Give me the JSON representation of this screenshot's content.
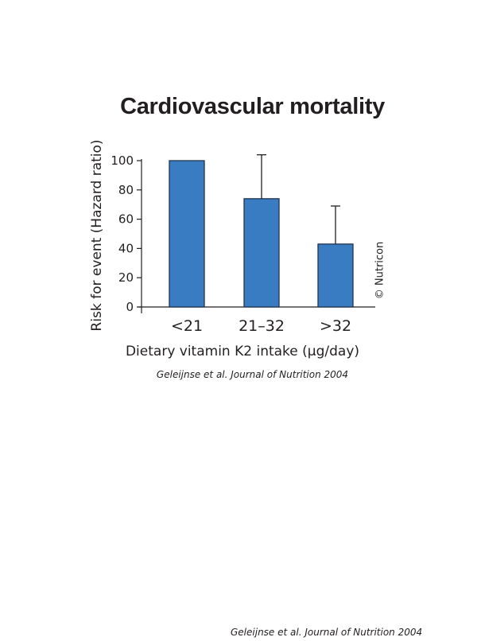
{
  "chart_data": {
    "type": "bar",
    "title": "Cardiovascular mortality",
    "xlabel": "Dietary vitamin K2 intake (µg/day)",
    "ylabel": "Risk for event (Hazard ratio)",
    "categories": [
      "<21",
      "21–32",
      ">32"
    ],
    "values": [
      100,
      74,
      43
    ],
    "error_upper": [
      null,
      104,
      69
    ],
    "ylim": [
      0,
      100
    ],
    "yticks": [
      "0",
      "20",
      "40",
      "60",
      "80",
      "100"
    ],
    "grid": false,
    "bar_color": "#3a7cc2",
    "bar_edge_color": "#1f3550"
  },
  "captions": {
    "source_under_chart": "Geleijnse et al. Journal of Nutrition 2004",
    "source_footer": "Geleijnse et al. Journal of Nutrition 2004",
    "copyright": "© Nutricon"
  }
}
